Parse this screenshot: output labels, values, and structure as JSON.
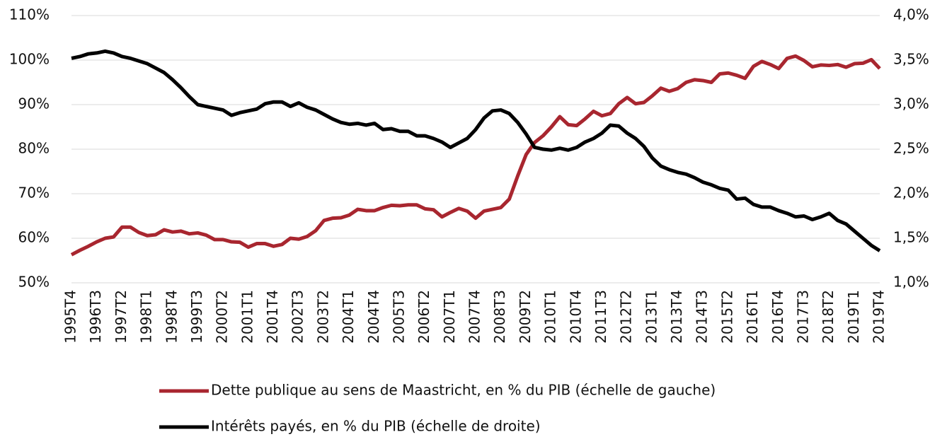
{
  "chart_data": {
    "type": "line",
    "categories": [
      "1995T4",
      null,
      null,
      "1996T3",
      null,
      null,
      "1997T2",
      null,
      null,
      "1998T1",
      null,
      null,
      "1998T4",
      null,
      null,
      "1999T3",
      null,
      null,
      "2000T2",
      null,
      null,
      "2001T1",
      null,
      null,
      "2001T4",
      null,
      null,
      "2002T3",
      null,
      null,
      "2003T2",
      null,
      null,
      "2004T1",
      null,
      null,
      "2004T4",
      null,
      null,
      "2005T3",
      null,
      null,
      "2006T2",
      null,
      null,
      "2007T1",
      null,
      null,
      "2007T4",
      null,
      null,
      "2008T3",
      null,
      null,
      "2009T2",
      null,
      null,
      "2010T1",
      null,
      null,
      "2010T4",
      null,
      null,
      "2011T3",
      null,
      null,
      "2012T2",
      null,
      null,
      "2013T1",
      null,
      null,
      "2013T4",
      null,
      null,
      "2014T3",
      null,
      null,
      "2015T2",
      null,
      null,
      "2016T1",
      null,
      null,
      "2016T4",
      null,
      null,
      "2017T3",
      null,
      null,
      "2018T2",
      null,
      null,
      "2019T1",
      null,
      null,
      "2019T4"
    ],
    "series": [
      {
        "name": "Dette publique au sens de Maastricht, en % du PIB (échelle de gauche)",
        "color": "#a8262f",
        "axis": "y",
        "values": [
          56.3,
          57.3,
          58.2,
          59.2,
          60.0,
          60.3,
          62.5,
          62.5,
          61.3,
          60.6,
          60.8,
          61.9,
          61.4,
          61.6,
          61.0,
          61.2,
          60.7,
          59.7,
          59.7,
          59.2,
          59.1,
          58.0,
          58.8,
          58.8,
          58.2,
          58.6,
          60.0,
          59.8,
          60.4,
          61.7,
          64.0,
          64.5,
          64.6,
          65.2,
          66.5,
          66.2,
          66.2,
          66.9,
          67.4,
          67.3,
          67.5,
          67.5,
          66.6,
          66.4,
          64.8,
          65.8,
          66.7,
          66.1,
          64.5,
          66.1,
          66.5,
          66.9,
          68.8,
          74.0,
          78.8,
          81.5,
          83.0,
          85.0,
          87.3,
          85.5,
          85.3,
          86.8,
          88.5,
          87.5,
          88.0,
          90.2,
          91.6,
          90.2,
          90.5,
          92.0,
          93.7,
          93.0,
          93.6,
          95.0,
          95.6,
          95.4,
          95.0,
          96.9,
          97.1,
          96.6,
          95.9,
          98.6,
          99.7,
          99.0,
          98.1,
          100.4,
          100.9,
          99.9,
          98.5,
          98.9,
          98.8,
          99.0,
          98.4,
          99.2,
          99.3,
          100.1,
          98.1
        ]
      },
      {
        "name": "Intérêts payés, en % du PIB (échelle de droite)",
        "color": "#000000",
        "axis": "y2",
        "values": [
          3.52,
          3.54,
          3.57,
          3.58,
          3.6,
          3.58,
          3.54,
          3.52,
          3.49,
          3.46,
          3.41,
          3.36,
          3.28,
          3.19,
          3.09,
          3.0,
          2.98,
          2.96,
          2.94,
          2.88,
          2.91,
          2.93,
          2.95,
          3.01,
          3.03,
          3.03,
          2.98,
          3.02,
          2.97,
          2.94,
          2.89,
          2.84,
          2.8,
          2.78,
          2.79,
          2.77,
          2.79,
          2.72,
          2.73,
          2.7,
          2.7,
          2.65,
          2.65,
          2.62,
          2.58,
          2.52,
          2.57,
          2.62,
          2.72,
          2.85,
          2.93,
          2.94,
          2.9,
          2.8,
          2.67,
          2.52,
          2.5,
          2.49,
          2.51,
          2.49,
          2.52,
          2.58,
          2.62,
          2.68,
          2.77,
          2.76,
          2.68,
          2.62,
          2.53,
          2.4,
          2.31,
          2.27,
          2.24,
          2.22,
          2.18,
          2.13,
          2.1,
          2.06,
          2.04,
          1.94,
          1.95,
          1.88,
          1.85,
          1.85,
          1.81,
          1.78,
          1.74,
          1.75,
          1.71,
          1.74,
          1.78,
          1.7,
          1.66,
          1.58,
          1.5,
          1.42,
          1.36
        ]
      }
    ],
    "ylim": [
      50,
      110
    ],
    "yticks": [
      {
        "value": 50,
        "label": "50%"
      },
      {
        "value": 60,
        "label": "60%"
      },
      {
        "value": 70,
        "label": "70%"
      },
      {
        "value": 80,
        "label": "80%"
      },
      {
        "value": 90,
        "label": "90%"
      },
      {
        "value": 100,
        "label": "100%"
      },
      {
        "value": 110,
        "label": "110%"
      }
    ],
    "y2lim": [
      1.0,
      4.0
    ],
    "y2ticks": [
      {
        "value": 1.0,
        "label": "1,0%"
      },
      {
        "value": 1.5,
        "label": "1,5%"
      },
      {
        "value": 2.0,
        "label": "2,0%"
      },
      {
        "value": 2.5,
        "label": "2,5%"
      },
      {
        "value": 3.0,
        "label": "3,0%"
      },
      {
        "value": 3.5,
        "label": "3,5%"
      },
      {
        "value": 4.0,
        "label": "4,0%"
      }
    ],
    "grid": true,
    "legend": "bottom"
  }
}
